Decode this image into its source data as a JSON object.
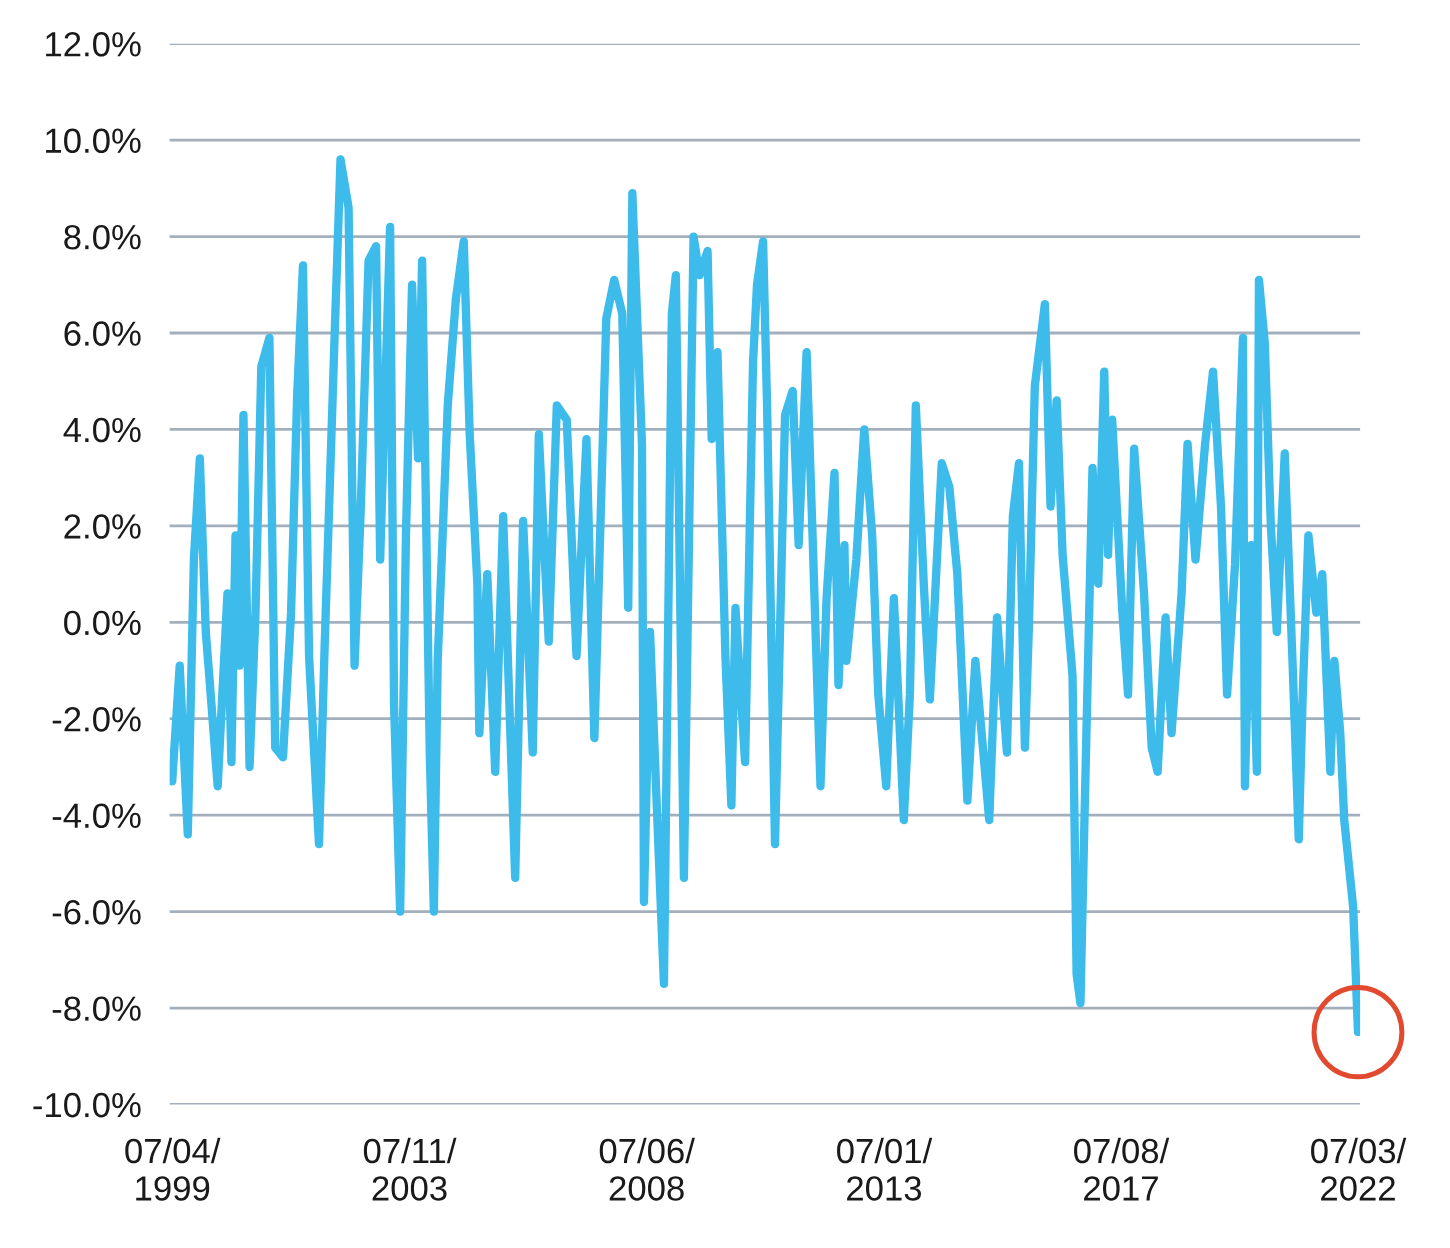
{
  "chart_data": {
    "type": "line",
    "x": [
      "1999-04-07",
      "1999-05-30",
      "1999-07-26",
      "1999-09-07",
      "1999-10-19",
      "1999-11-30",
      "1999-12-27",
      "2000-02-22",
      "2000-05-01",
      "2000-05-29",
      "2000-06-27",
      "2000-07-25",
      "2000-08-22",
      "2000-10-04",
      "2000-11-15",
      "2000-12-26",
      "2001-02-21",
      "2001-04-03",
      "2001-05-28",
      "2001-07-24",
      "2001-09-05",
      "2001-10-16",
      "2001-11-28",
      "2002-02-06",
      "2002-03-18",
      "2002-05-27",
      "2002-07-08",
      "2002-09-03",
      "2002-10-15",
      "2002-11-26",
      "2003-01-22",
      "2003-03-16",
      "2003-04-14",
      "2003-06-23",
      "2003-07-21",
      "2003-09-02",
      "2003-10-13",
      "2003-11-25",
      "2004-01-06",
      "2004-02-04",
      "2004-03-29",
      "2004-04-27",
      "2004-05-24",
      "2004-08-03",
      "2004-09-29",
      "2004-11-24",
      "2005-01-05",
      "2005-02-28",
      "2005-03-14",
      "2005-05-09",
      "2005-07-04",
      "2005-08-29",
      "2005-11-22",
      "2006-01-17",
      "2006-03-26",
      "2006-05-08",
      "2006-07-17",
      "2006-09-12",
      "2006-11-21",
      "2007-01-29",
      "2007-04-09",
      "2007-06-04",
      "2007-08-27",
      "2007-10-22",
      "2007-12-18",
      "2008-01-29",
      "2008-02-27",
      "2008-05-05",
      "2008-05-19",
      "2008-07-01",
      "2008-08-12",
      "2008-10-07",
      "2008-12-02",
      "2008-12-30",
      "2009-02-25",
      "2009-05-04",
      "2009-06-16",
      "2009-08-11",
      "2009-09-09",
      "2009-10-20",
      "2009-12-15",
      "2010-01-26",
      "2010-02-24",
      "2010-05-03",
      "2010-06-28",
      "2010-07-26",
      "2010-09-07",
      "2010-10-05",
      "2010-11-30",
      "2011-02-09",
      "2011-04-04",
      "2011-05-16",
      "2011-07-11",
      "2011-08-22",
      "2011-10-17",
      "2011-11-29",
      "2012-01-24",
      "2012-02-21",
      "2012-04-03",
      "2012-04-17",
      "2012-06-26",
      "2012-08-21",
      "2012-10-16",
      "2012-11-28",
      "2013-01-23",
      "2013-03-18",
      "2013-05-27",
      "2013-07-09",
      "2013-08-20",
      "2013-10-15",
      "2013-11-27",
      "2014-02-19",
      "2014-04-14",
      "2014-06-09",
      "2014-08-19",
      "2014-10-14",
      "2015-01-20",
      "2015-03-16",
      "2015-05-25",
      "2015-07-06",
      "2015-08-18",
      "2015-09-29",
      "2015-10-27",
      "2015-12-08",
      "2016-02-17",
      "2016-03-28",
      "2016-05-10",
      "2016-06-21",
      "2016-08-30",
      "2016-09-28",
      "2016-10-25",
      "2016-11-23",
      "2017-01-18",
      "2017-02-28",
      "2017-04-11",
      "2017-05-08",
      "2017-06-06",
      "2017-08-15",
      "2017-09-26",
      "2017-11-08",
      "2018-01-17",
      "2018-03-12",
      "2018-04-23",
      "2018-06-18",
      "2018-07-30",
      "2018-10-09",
      "2018-11-20",
      "2019-01-15",
      "2019-03-24",
      "2019-05-19",
      "2019-07-14",
      "2019-08-26",
      "2019-10-21",
      "2019-12-16",
      "2019-12-30",
      "2020-02-11",
      "2020-03-23",
      "2020-04-07",
      "2020-05-18",
      "2020-06-30",
      "2020-08-11",
      "2020-10-06",
      "2020-12-01",
      "2021-01-13",
      "2021-02-10",
      "2021-03-22",
      "2021-05-17",
      "2021-06-28",
      "2021-08-24",
      "2021-09-21",
      "2021-11-02",
      "2021-11-30",
      "2022-02-01",
      "2022-03-07"
    ],
    "series": [
      {
        "color": "#3dbbeb",
        "values": [
          -3.3,
          -0.9,
          -4.4,
          1.3,
          3.4,
          -0.2,
          -1.2,
          -3.4,
          0.6,
          -2.9,
          1.8,
          -0.9,
          4.3,
          -3.0,
          0.2,
          5.3,
          5.9,
          -2.6,
          -2.8,
          0.2,
          4.7,
          7.4,
          -0.7,
          -4.6,
          -0.5,
          5.9,
          9.6,
          8.6,
          -0.9,
          2.2,
          7.5,
          7.8,
          1.3,
          8.2,
          -1.7,
          -6.0,
          1.8,
          7.0,
          3.4,
          7.5,
          -2.7,
          -6.0,
          -0.8,
          4.5,
          6.7,
          7.9,
          3.9,
          0.8,
          -2.3,
          1.0,
          -3.1,
          2.2,
          -5.3,
          2.1,
          -2.7,
          3.9,
          -0.4,
          4.5,
          4.2,
          -0.7,
          3.8,
          -2.4,
          6.3,
          7.1,
          6.4,
          0.3,
          8.9,
          3.7,
          -5.8,
          -0.2,
          -3.4,
          -7.5,
          6.4,
          7.2,
          -5.3,
          8.0,
          7.2,
          7.7,
          3.8,
          5.6,
          -0.7,
          -3.8,
          0.3,
          -2.9,
          5.4,
          7.0,
          7.9,
          4.5,
          -4.6,
          4.3,
          4.8,
          1.6,
          5.6,
          1.8,
          -3.4,
          0.5,
          3.1,
          -1.3,
          1.6,
          -0.8,
          1.3,
          4.0,
          1.8,
          -1.5,
          -3.4,
          0.5,
          -4.1,
          -1.5,
          4.5,
          0.8,
          -1.6,
          3.3,
          2.8,
          1.0,
          -3.7,
          -0.8,
          -4.1,
          0.1,
          -2.7,
          2.2,
          3.3,
          -2.6,
          -0.1,
          4.9,
          6.6,
          2.4,
          4.6,
          1.4,
          -1.1,
          -7.3,
          -7.9,
          -4.0,
          3.2,
          0.8,
          5.2,
          1.4,
          4.2,
          0.3,
          -1.5,
          3.6,
          0.6,
          -2.6,
          -3.1,
          0.1,
          -2.3,
          0.6,
          3.7,
          1.3,
          3.7,
          5.2,
          2.4,
          -1.5,
          1.2,
          5.9,
          -3.4,
          1.6,
          -3.1,
          7.1,
          5.8,
          2.0,
          -0.2,
          3.5,
          -0.9,
          -4.5,
          -1.5,
          1.8,
          0.2,
          1.0,
          -3.1,
          -0.8,
          -2.3,
          -4.1,
          -5.9,
          -8.5
        ]
      }
    ],
    "xlim": [
      "1999-03-20",
      "2022-03-22"
    ],
    "xticks": [
      {
        "value": "1999-04-07",
        "label": "07/04/\n1999"
      },
      {
        "value": "2003-11-07",
        "label": "07/11/\n2003"
      },
      {
        "value": "2008-06-07",
        "label": "07/06/\n2008"
      },
      {
        "value": "2013-01-07",
        "label": "07/01/\n2013"
      },
      {
        "value": "2017-08-07",
        "label": "07/08/\n2017"
      },
      {
        "value": "2022-03-07",
        "label": "07/03/\n2022"
      }
    ],
    "ylim": [
      -10,
      12
    ],
    "yticks": [
      {
        "value": -10,
        "label": "-10.0%"
      },
      {
        "value": -8,
        "label": "-8.0%"
      },
      {
        "value": -6,
        "label": "-6.0%"
      },
      {
        "value": -4,
        "label": "-4.0%"
      },
      {
        "value": -2,
        "label": "-2.0%"
      },
      {
        "value": 0,
        "label": "0.0%"
      },
      {
        "value": 2,
        "label": "2.0%"
      },
      {
        "value": 4,
        "label": "4.0%"
      },
      {
        "value": 6,
        "label": "6.0%"
      },
      {
        "value": 8,
        "label": "8.0%"
      },
      {
        "value": 10,
        "label": "10.0%"
      },
      {
        "value": 12,
        "label": "12.0%"
      }
    ],
    "grid": "y",
    "marker": "none",
    "line_style": "solid"
  }
}
